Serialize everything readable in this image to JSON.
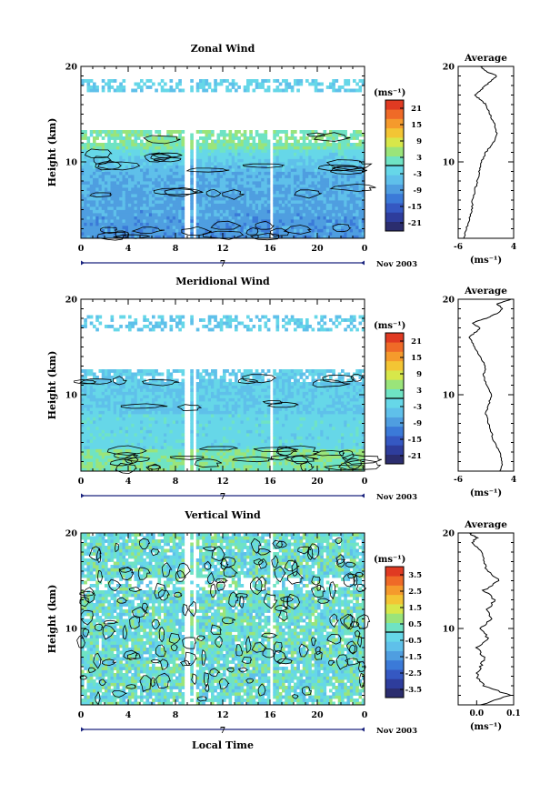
{
  "figure": {
    "xlabel": "Local Time",
    "date_label": "Nov 2003",
    "day_label": "7",
    "avg_title": "Average",
    "cb_unit": "(ms⁻¹)",
    "avg_xlabel": "(ms⁻¹)"
  },
  "chart_data": [
    {
      "type": "heatmap",
      "title": "Zonal Wind",
      "ylabel": "Height (km)",
      "xlim": [
        0,
        24
      ],
      "ylim": [
        2,
        20
      ],
      "xticks": [
        "0",
        "4",
        "8",
        "12",
        "16",
        "20",
        "0"
      ],
      "yticks": [
        "10",
        "20"
      ],
      "colorbar": {
        "ticks": [
          "21",
          "15",
          "9",
          "3",
          "-3",
          "-9",
          "-15",
          "-21"
        ],
        "range": [
          -24,
          24
        ],
        "contour": 0
      },
      "gaps_hours": [
        8.95,
        9.6,
        16.1
      ],
      "profile": {
        "title": "Average",
        "xlim": [
          -6,
          4
        ],
        "xticks": [
          "-6",
          "4"
        ],
        "yticks": [
          "10",
          "20"
        ],
        "heights": [
          2,
          3,
          4,
          5,
          6,
          7,
          8,
          9,
          10,
          11,
          12,
          13,
          14,
          15,
          16,
          16.5,
          17,
          17.5,
          18,
          18.5,
          19,
          19.5,
          20
        ],
        "values": [
          -5,
          -4.5,
          -4,
          -3.5,
          -3.4,
          -3,
          -2.5,
          -2.2,
          -1.8,
          -1,
          0.3,
          1,
          0.5,
          -0.3,
          -1,
          -2,
          -3,
          -2,
          -1,
          0,
          1,
          -1,
          -2
        ]
      }
    },
    {
      "type": "heatmap",
      "title": "Meridional Wind",
      "ylabel": "Height (km)",
      "xlim": [
        0,
        24
      ],
      "ylim": [
        2,
        20
      ],
      "xticks": [
        "0",
        "4",
        "8",
        "12",
        "16",
        "20",
        "0"
      ],
      "yticks": [
        "10",
        "20"
      ],
      "colorbar": {
        "ticks": [
          "21",
          "15",
          "9",
          "3",
          "-3",
          "-9",
          "-15",
          "-21"
        ],
        "range": [
          -24,
          24
        ],
        "contour": 0
      },
      "gaps_hours": [
        8.95,
        9.6,
        16.1
      ],
      "profile": {
        "title": "Average",
        "xlim": [
          -6,
          4
        ],
        "xticks": [
          "-6",
          "4"
        ],
        "yticks": [
          "10",
          "20"
        ],
        "heights": [
          2,
          3,
          4,
          5,
          6,
          7,
          8,
          9,
          10,
          11,
          12,
          13,
          14,
          15,
          16,
          16.5,
          17,
          17.5,
          18,
          18.5,
          19,
          19.5,
          20
        ],
        "values": [
          1.5,
          2,
          1.5,
          0.5,
          0,
          -0.5,
          -1,
          -0.5,
          0,
          -0.8,
          -1.5,
          -1,
          -2,
          -3,
          -4,
          -3,
          -2,
          -3.5,
          -1,
          1,
          2,
          1,
          3.5
        ]
      }
    },
    {
      "type": "heatmap",
      "title": "Vertical Wind",
      "ylabel": "Height (km)",
      "xlim": [
        0,
        24
      ],
      "ylim": [
        2,
        20
      ],
      "xticks": [
        "0",
        "4",
        "8",
        "12",
        "16",
        "20",
        "0"
      ],
      "yticks": [
        "10",
        "20"
      ],
      "colorbar": {
        "ticks": [
          "3.5",
          "2.5",
          "1.5",
          "0.5",
          "-0.5",
          "-1.5",
          "-2.5",
          "-3.5"
        ],
        "range": [
          -4,
          4
        ],
        "contour": 0
      },
      "gaps_hours": [
        8.95,
        9.6,
        16.1
      ],
      "profile": {
        "title": "Average",
        "xlim": [
          -0.05,
          0.1
        ],
        "xticks": [
          "0.0",
          "0.1"
        ],
        "yticks": [
          "10",
          "20"
        ],
        "heights": [
          2,
          3,
          4,
          5,
          6,
          7,
          8,
          9,
          10,
          11,
          12,
          13,
          14,
          15,
          16,
          17,
          18,
          19,
          19.5,
          20
        ],
        "values": [
          0.01,
          0.09,
          0.02,
          0.0,
          0.01,
          0.02,
          0.0,
          0.03,
          0.01,
          0.04,
          0.03,
          0.05,
          0.02,
          0.06,
          0.03,
          0.02,
          0.01,
          -0.01,
          0.0,
          -0.02
        ]
      }
    }
  ]
}
